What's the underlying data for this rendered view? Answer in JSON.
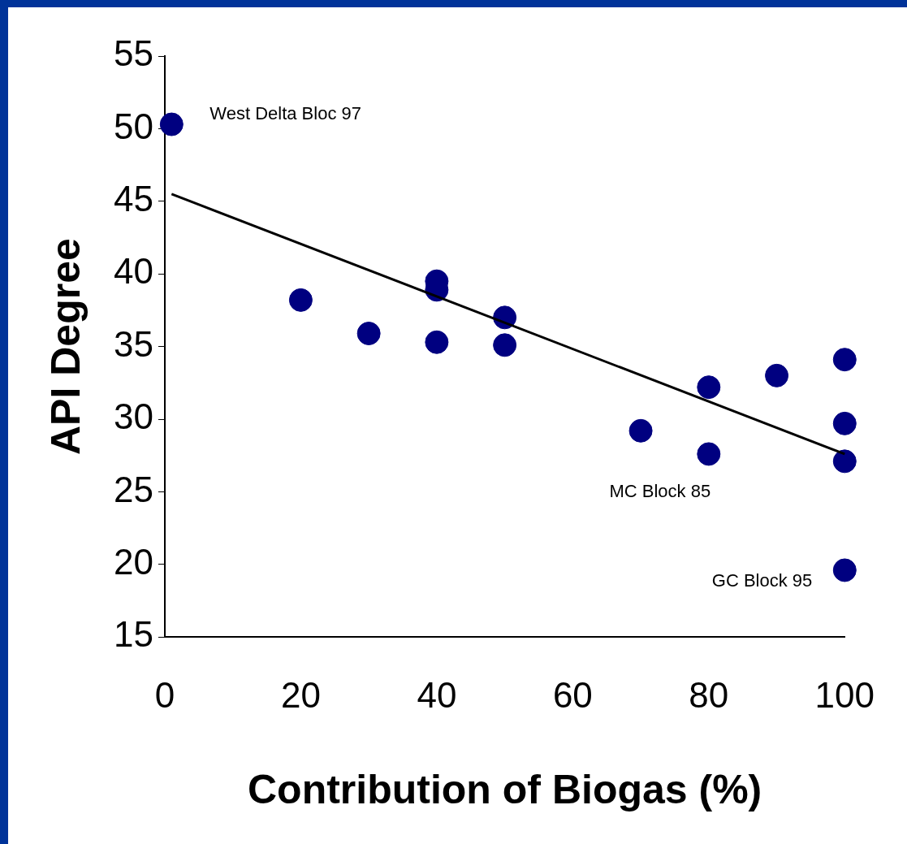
{
  "chart_data": {
    "type": "scatter",
    "xlabel": "Contribution of Biogas (%)",
    "ylabel": "API Degree",
    "xlim": [
      0,
      100
    ],
    "xticks": [
      0,
      20,
      40,
      60,
      80,
      100
    ],
    "ylim": [
      15,
      55
    ],
    "yticks": [
      15,
      20,
      25,
      30,
      35,
      40,
      45,
      50,
      55
    ],
    "grid": false,
    "legend": false,
    "series": [
      {
        "type": "scatter",
        "marker": "circle",
        "color": "#000080",
        "x": [
          1,
          20,
          30,
          40,
          40,
          40,
          50,
          50,
          70,
          80,
          80,
          90,
          100,
          100,
          100,
          100
        ],
        "values": [
          50.3,
          38.2,
          35.9,
          39.5,
          38.9,
          35.3,
          37.0,
          35.1,
          29.2,
          32.2,
          27.6,
          33.0,
          34.1,
          29.7,
          27.1,
          19.6
        ]
      },
      {
        "type": "line",
        "marker": "none",
        "color": "#000000",
        "x": [
          1,
          100
        ],
        "values": [
          45.5,
          27.6
        ]
      }
    ],
    "annotations": [
      {
        "text": "West Delta Bloc 97",
        "x": 1,
        "y": 50.3
      },
      {
        "text": "MC Block 85",
        "x": 80,
        "y": 27.6
      },
      {
        "text": "GC Block 95",
        "x": 100,
        "y": 19.6
      }
    ]
  }
}
